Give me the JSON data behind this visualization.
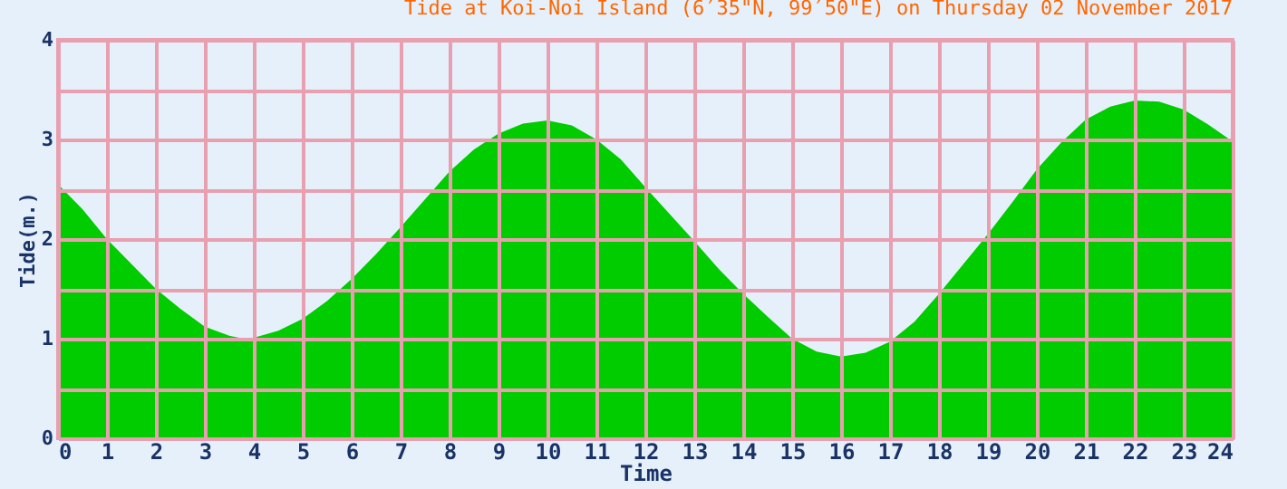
{
  "chart_data": {
    "type": "area",
    "title": "Tide at Koi-Noi Island (6′35\"N, 99′50\"E) on Thursday 02 November 2017",
    "xlabel": "Time",
    "ylabel": "Tide(m.)",
    "x": [
      0,
      0.5,
      1,
      1.5,
      2,
      2.5,
      3,
      3.5,
      3.8,
      4,
      4.5,
      5,
      5.5,
      6,
      6.5,
      7,
      7.5,
      8,
      8.5,
      9,
      9.5,
      10,
      10.5,
      11,
      11.5,
      12,
      12.5,
      13,
      13.5,
      14,
      14.5,
      15,
      15.5,
      16,
      16.5,
      17,
      17.5,
      18,
      18.5,
      19,
      19.5,
      20,
      20.5,
      21,
      21.5,
      22,
      22.5,
      23,
      23.5,
      24
    ],
    "series": [
      {
        "color": "#00cc00",
        "values": [
          2.55,
          2.3,
          2.0,
          1.75,
          1.5,
          1.3,
          1.12,
          1.03,
          1.0,
          1.01,
          1.08,
          1.2,
          1.38,
          1.6,
          1.85,
          2.12,
          2.4,
          2.68,
          2.9,
          3.06,
          3.16,
          3.19,
          3.14,
          3.0,
          2.8,
          2.52,
          2.25,
          1.98,
          1.7,
          1.45,
          1.22,
          1.0,
          0.87,
          0.82,
          0.86,
          0.97,
          1.17,
          1.45,
          1.75,
          2.05,
          2.37,
          2.7,
          2.97,
          3.2,
          3.33,
          3.39,
          3.38,
          3.3,
          3.15,
          2.98
        ]
      }
    ],
    "xlim": [
      0,
      24
    ],
    "xticks": [
      0,
      1,
      2,
      3,
      4,
      5,
      6,
      7,
      8,
      9,
      10,
      11,
      12,
      13,
      14,
      15,
      16,
      17,
      18,
      19,
      20,
      21,
      22,
      23,
      24
    ],
    "ylim": [
      0,
      4
    ],
    "yticks": [
      0,
      {
        "value": 0.5,
        "label": null
      },
      1,
      {
        "value": 1.5,
        "label": null
      },
      2,
      {
        "value": 2.5,
        "label": null
      },
      3,
      {
        "value": 3.5,
        "label": null
      },
      4
    ],
    "grid": true
  }
}
